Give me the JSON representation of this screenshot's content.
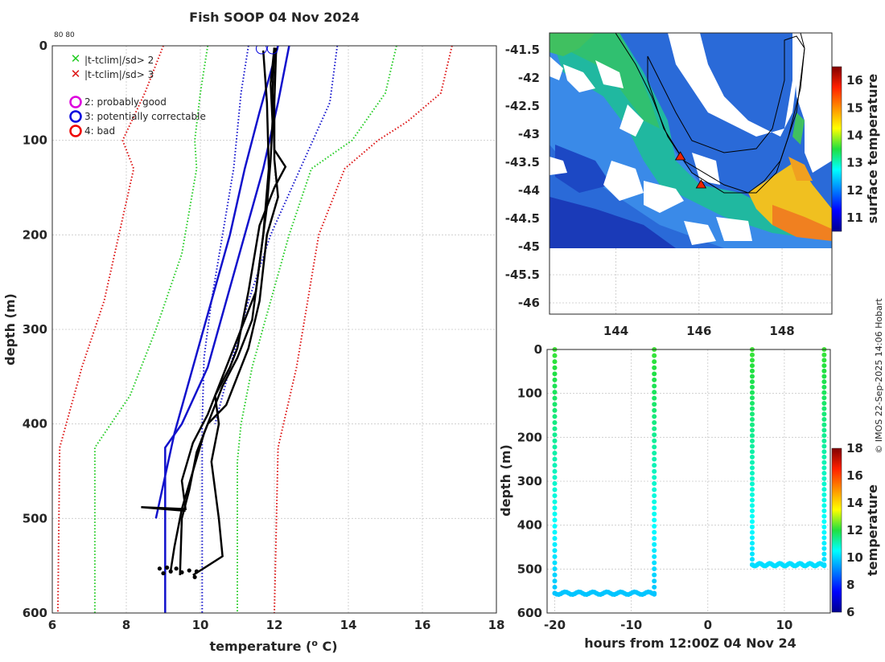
{
  "title": "Fish SOOP 04 Nov 2024",
  "corner_label": "80 80",
  "credit": "© IMOS 22-Sep-2025 14:06 Hobart",
  "legend": {
    "flag2": "|t-tclim|/sd> 2",
    "flag3": "|t-tclim|/sd> 3",
    "good": "2: probably good",
    "correctable": "3: potentially correctable",
    "bad": "4: bad"
  },
  "colors": {
    "sd2": "#22cc22",
    "sd3": "#dd1111",
    "good": "#dd00dd",
    "correctable": "#0000dd",
    "bad": "#ee0000",
    "profile": "#000000",
    "clim": "#1111cc"
  },
  "chart_data": [
    {
      "type": "line",
      "name": "temperature-profile",
      "title": "Fish SOOP 04 Nov 2024",
      "xlabel": "temperature (o C)",
      "ylabel": "depth (m)",
      "xlim": [
        6,
        18
      ],
      "ylim": [
        600,
        0
      ],
      "xticks": [
        "6",
        "8",
        "10",
        "12",
        "14",
        "16",
        "18"
      ],
      "yticks": [
        "0",
        "100",
        "200",
        "300",
        "400",
        "500",
        "600"
      ],
      "grid": true,
      "legend_position": "top-left",
      "series": [
        {
          "name": "clim-mean",
          "style": "solid",
          "color": "#1111cc",
          "points": [
            [
              12.4,
              0
            ],
            [
              12.1,
              60
            ],
            [
              11.7,
              130
            ],
            [
              11.2,
              200
            ],
            [
              10.7,
              270
            ],
            [
              10.2,
              340
            ],
            [
              9.5,
              400
            ],
            [
              9.05,
              425
            ],
            [
              9.05,
              600
            ]
          ]
        },
        {
          "name": "clim-mean-alt",
          "style": "solid",
          "color": "#1111cc",
          "points": [
            [
              12.1,
              0
            ],
            [
              11.6,
              70
            ],
            [
              11.2,
              130
            ],
            [
              10.8,
              200
            ],
            [
              10.3,
              270
            ],
            [
              9.8,
              340
            ],
            [
              9.3,
              410
            ],
            [
              8.8,
              500
            ]
          ]
        },
        {
          "name": "minus-1sd",
          "style": "dotted",
          "color": "#1111cc",
          "points": [
            [
              11.3,
              0
            ],
            [
              11.1,
              50
            ],
            [
              10.9,
              130
            ],
            [
              10.6,
              200
            ],
            [
              10.3,
              270
            ],
            [
              10.1,
              330
            ],
            [
              10.05,
              400
            ],
            [
              10.05,
              600
            ]
          ]
        },
        {
          "name": "plus-1sd",
          "style": "dotted",
          "color": "#1111cc",
          "points": [
            [
              13.7,
              0
            ],
            [
              13.5,
              60
            ],
            [
              12.7,
              130
            ],
            [
              11.9,
              200
            ],
            [
              11.3,
              270
            ],
            [
              10.8,
              340
            ],
            [
              10.4,
              400
            ]
          ]
        },
        {
          "name": "minus-2sd",
          "style": "dotted",
          "color": "#22cc22",
          "points": [
            [
              10.2,
              0
            ],
            [
              10.0,
              50
            ],
            [
              9.85,
              100
            ],
            [
              9.9,
              130
            ],
            [
              9.5,
              220
            ],
            [
              8.8,
              300
            ],
            [
              8.1,
              370
            ],
            [
              7.15,
              425
            ],
            [
              7.15,
              600
            ]
          ]
        },
        {
          "name": "plus-2sd",
          "style": "dotted",
          "color": "#22cc22",
          "points": [
            [
              15.3,
              0
            ],
            [
              15.0,
              50
            ],
            [
              14.1,
              100
            ],
            [
              13.0,
              130
            ],
            [
              12.4,
              200
            ],
            [
              11.9,
              270
            ],
            [
              11.4,
              340
            ],
            [
              11.1,
              400
            ],
            [
              11.0,
              440
            ],
            [
              11.0,
              600
            ]
          ]
        },
        {
          "name": "minus-3sd",
          "style": "dotted",
          "color": "#dd1111",
          "points": [
            [
              9.0,
              0
            ],
            [
              8.5,
              50
            ],
            [
              7.9,
              100
            ],
            [
              8.2,
              130
            ],
            [
              7.8,
              200
            ],
            [
              7.4,
              270
            ],
            [
              6.8,
              340
            ],
            [
              6.2,
              425
            ],
            [
              6.15,
              600
            ]
          ]
        },
        {
          "name": "plus-3sd",
          "style": "dotted",
          "color": "#dd1111",
          "points": [
            [
              16.8,
              0
            ],
            [
              16.5,
              50
            ],
            [
              15.6,
              80
            ],
            [
              14.8,
              100
            ],
            [
              13.9,
              130
            ],
            [
              13.2,
              200
            ],
            [
              12.9,
              270
            ],
            [
              12.6,
              340
            ],
            [
              12.1,
              425
            ],
            [
              12.0,
              600
            ]
          ]
        },
        {
          "name": "profile-1",
          "style": "solid",
          "color": "#000000",
          "points": [
            [
              12.0,
              2
            ],
            [
              11.9,
              40
            ],
            [
              11.95,
              80
            ],
            [
              11.9,
              120
            ],
            [
              11.8,
              170
            ],
            [
              11.6,
              230
            ],
            [
              11.4,
              290
            ],
            [
              11.0,
              330
            ],
            [
              10.6,
              360
            ],
            [
              10.1,
              410
            ],
            [
              9.8,
              450
            ],
            [
              9.5,
              490
            ],
            [
              9.3,
              530
            ],
            [
              9.2,
              555
            ]
          ]
        },
        {
          "name": "profile-2",
          "style": "solid",
          "color": "#000000",
          "points": [
            [
              12.0,
              2
            ],
            [
              11.95,
              50
            ],
            [
              12.0,
              110
            ],
            [
              12.3,
              128
            ],
            [
              12.0,
              150
            ],
            [
              11.6,
              190
            ],
            [
              11.3,
              260
            ],
            [
              11.0,
              320
            ],
            [
              10.8,
              340
            ],
            [
              10.4,
              370
            ],
            [
              10.5,
              400
            ],
            [
              10.3,
              440
            ],
            [
              10.5,
              500
            ],
            [
              10.6,
              540
            ],
            [
              9.8,
              560
            ]
          ]
        },
        {
          "name": "profile-3",
          "style": "solid",
          "color": "#000000",
          "points": [
            [
              12.05,
              2
            ],
            [
              12.0,
              60
            ],
            [
              12.0,
              120
            ],
            [
              12.1,
              160
            ],
            [
              11.8,
              200
            ],
            [
              11.6,
              270
            ],
            [
              11.3,
              320
            ],
            [
              11.0,
              350
            ],
            [
              10.7,
              380
            ],
            [
              10.2,
              400
            ],
            [
              9.9,
              430
            ],
            [
              9.7,
              470
            ],
            [
              9.5,
              500
            ],
            [
              9.45,
              560
            ]
          ]
        },
        {
          "name": "profile-4",
          "style": "solid",
          "color": "#000000",
          "points": [
            [
              11.7,
              5
            ],
            [
              11.8,
              60
            ],
            [
              11.85,
              130
            ],
            [
              11.7,
              200
            ],
            [
              11.5,
              260
            ],
            [
              11.1,
              300
            ],
            [
              10.6,
              350
            ],
            [
              10.2,
              390
            ],
            [
              9.8,
              420
            ],
            [
              9.5,
              460
            ],
            [
              9.6,
              490
            ],
            [
              8.4,
              488
            ],
            [
              9.6,
              492
            ]
          ]
        }
      ],
      "markers": [
        {
          "label": "3: potentially correctable",
          "x": 11.65,
          "y": 3
        },
        {
          "label": "3: potentially correctable",
          "x": 11.95,
          "y": 3
        }
      ]
    },
    {
      "type": "heatmap",
      "name": "sst-map",
      "xlabel": "longitude",
      "ylabel": "latitude",
      "xlim": [
        142.4,
        149.2
      ],
      "ylim": [
        -46.2,
        -41.2
      ],
      "xticks": [
        "144",
        "146",
        "148"
      ],
      "yticks": [
        "-41.5",
        "-42",
        "-42.5",
        "-43",
        "-43.5",
        "-44",
        "-44.5",
        "-45",
        "-45.5",
        "-46"
      ],
      "colorbar": {
        "label": "surface temperature",
        "range": [
          10.5,
          16.5
        ],
        "ticks": [
          "11",
          "12",
          "13",
          "14",
          "15",
          "16"
        ]
      },
      "stations": [
        {
          "lon": 145.55,
          "lat": -43.4
        },
        {
          "lon": 146.05,
          "lat": -43.9
        }
      ]
    },
    {
      "type": "scatter",
      "name": "depth-time",
      "xlabel": "hours from 12:00Z 04 Nov 24",
      "ylabel": "depth (m)",
      "xlim": [
        -21,
        16
      ],
      "ylim": [
        600,
        0
      ],
      "xticks": [
        "-20",
        "-10",
        "0",
        "10"
      ],
      "yticks": [
        "0",
        "100",
        "200",
        "300",
        "400",
        "500",
        "600"
      ],
      "grid": true,
      "colorbar": {
        "label": "temperature",
        "range": [
          6,
          18
        ],
        "ticks": [
          "6",
          "8",
          "10",
          "12",
          "14",
          "16",
          "18"
        ]
      },
      "segments": [
        {
          "x_start": -20.0,
          "x_end": -7.0,
          "bottom_depth": 555
        },
        {
          "x_start": 5.8,
          "x_end": 15.2,
          "bottom_depth": 490
        }
      ]
    }
  ]
}
